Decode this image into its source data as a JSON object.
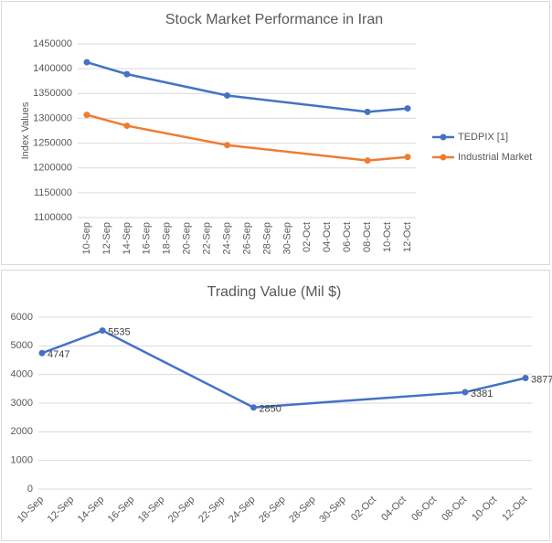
{
  "chart_data": [
    {
      "type": "line",
      "title": "Stock Market Performance in Iran",
      "y_label": "Index Values",
      "x": [
        "10-Sep",
        "14-Sep",
        "24-Sep",
        "08-Oct",
        "12-Oct"
      ],
      "xticks": [
        "10-Sep",
        "12-Sep",
        "14-Sep",
        "16-Sep",
        "18-Sep",
        "20-Sep",
        "22-Sep",
        "24-Sep",
        "26-Sep",
        "28-Sep",
        "30-Sep",
        "02-Oct",
        "04-Oct",
        "06-Oct",
        "08-Oct",
        "10-Oct",
        "12-Oct"
      ],
      "series": [
        {
          "name": "TEDPIX [1]",
          "color": "#4472c4",
          "values": [
            1413000,
            1389000,
            1346000,
            1313000,
            1320000
          ]
        },
        {
          "name": "Industrial Market",
          "color": "#ed7d31",
          "values": [
            1307000,
            1285000,
            1246000,
            1215000,
            1222000
          ]
        }
      ],
      "ylim": [
        1100000,
        1450000
      ],
      "yticks": [
        1100000,
        1150000,
        1200000,
        1250000,
        1300000,
        1350000,
        1400000,
        1450000
      ],
      "grid": true,
      "legend": "right"
    },
    {
      "type": "line",
      "title": "Trading Value (Mil $)",
      "x": [
        "10-Sep",
        "14-Sep",
        "24-Sep",
        "08-Oct",
        "12-Oct"
      ],
      "xticks": [
        "10-Sep",
        "12-Sep",
        "14-Sep",
        "16-Sep",
        "18-Sep",
        "20-Sep",
        "22-Sep",
        "24-Sep",
        "26-Sep",
        "28-Sep",
        "30-Sep",
        "02-Oct",
        "04-Oct",
        "06-Oct",
        "08-Oct",
        "10-Oct",
        "12-Oct"
      ],
      "series": [
        {
          "name": "Trading Value",
          "color": "#4472c4",
          "values": [
            4747,
            5535,
            2850,
            3381,
            3877
          ]
        }
      ],
      "ylim": [
        0,
        6000
      ],
      "yticks": [
        0,
        1000,
        2000,
        3000,
        4000,
        5000,
        6000
      ],
      "grid": true,
      "data_labels": true
    }
  ]
}
